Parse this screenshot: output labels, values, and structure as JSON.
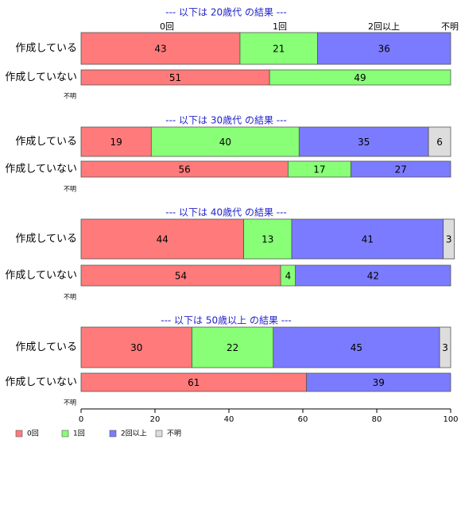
{
  "chart_data": {
    "type": "bar",
    "orientation": "horizontal",
    "stacked": true,
    "categories": [
      "0回",
      "1回",
      "2回以上",
      "不明"
    ],
    "colors": {
      "0回": "#ff7a7a",
      "1回": "#88ff77",
      "2回以上": "#7b7bff",
      "不明": "#dddddd"
    },
    "column_headers": [
      "0回",
      "1回",
      "2回以上",
      "不明"
    ],
    "panels": [
      {
        "title": "--- 以下は 20歳代 の結果 ---",
        "rows": [
          {
            "label": "作成している",
            "values": [
              43,
              21,
              36,
              0
            ]
          },
          {
            "label": "作成していない",
            "values": [
              51,
              49,
              0,
              0
            ]
          }
        ],
        "unknown_label": "不明"
      },
      {
        "title": "--- 以下は 30歳代 の結果 ---",
        "rows": [
          {
            "label": "作成している",
            "values": [
              19,
              40,
              35,
              6
            ]
          },
          {
            "label": "作成していない",
            "values": [
              56,
              17,
              27,
              0
            ]
          }
        ],
        "unknown_label": "不明"
      },
      {
        "title": "--- 以下は 40歳代 の結果 ---",
        "rows": [
          {
            "label": "作成している",
            "values": [
              44,
              13,
              41,
              3
            ]
          },
          {
            "label": "作成していない",
            "values": [
              54,
              4,
              42,
              0
            ]
          }
        ],
        "unknown_label": "不明"
      },
      {
        "title": "--- 以下は 50歳以上 の結果 ---",
        "rows": [
          {
            "label": "作成している",
            "values": [
              30,
              22,
              45,
              3
            ]
          },
          {
            "label": "作成していない",
            "values": [
              61,
              0,
              39,
              0
            ]
          }
        ],
        "unknown_label": "不明"
      }
    ],
    "x_ticks": [
      0,
      20,
      40,
      60,
      80,
      100
    ],
    "xlim": [
      0,
      100
    ],
    "legend": {
      "position": "bottom-left",
      "entries": [
        "0回",
        "1回",
        "2回以上",
        "不明"
      ]
    }
  }
}
